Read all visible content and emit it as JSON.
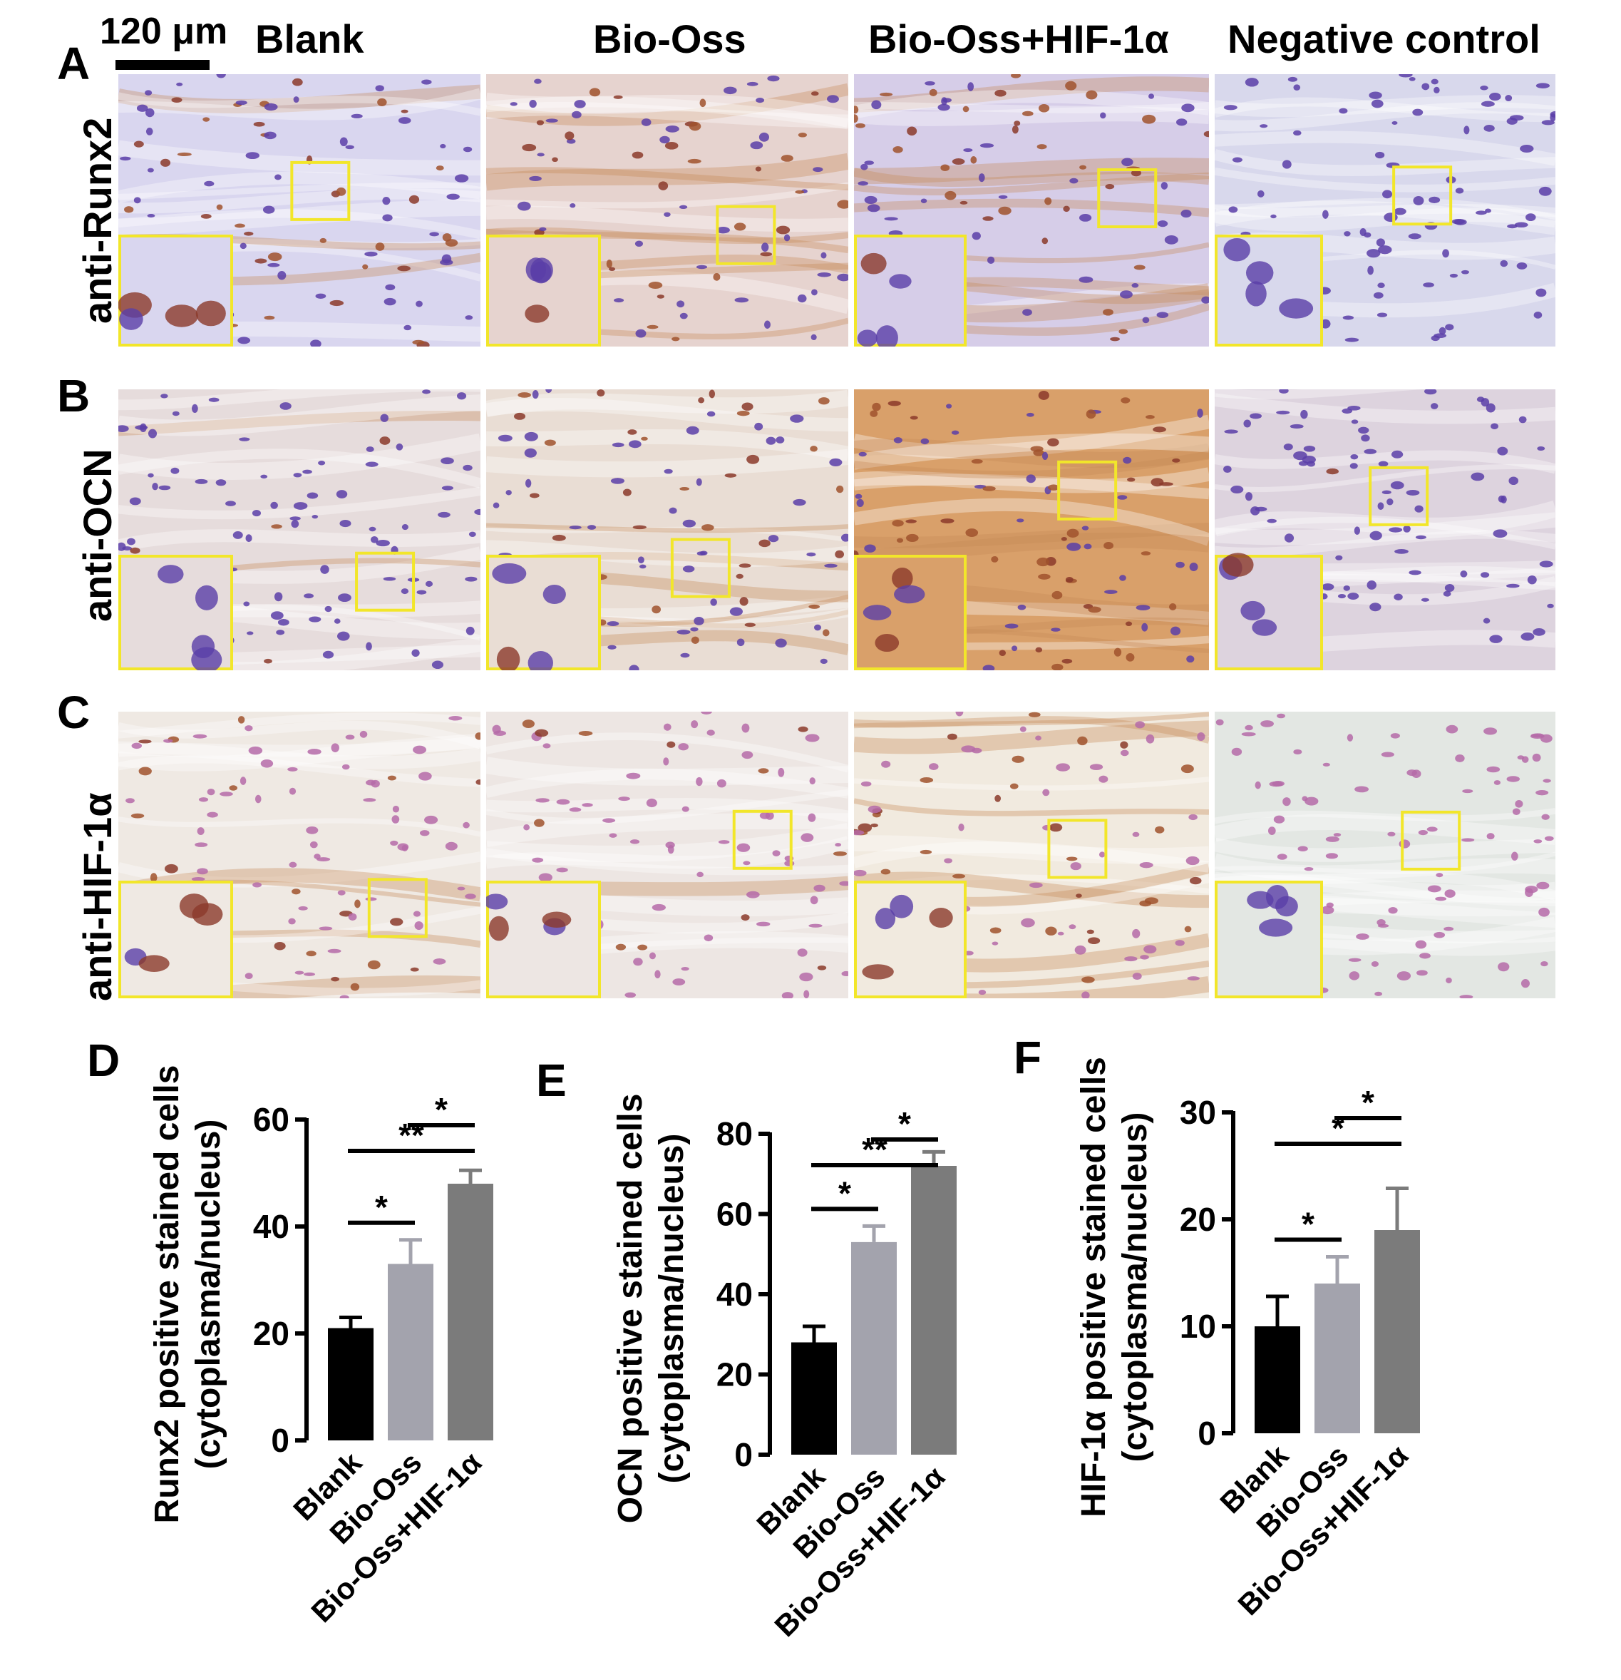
{
  "panels": {
    "A": "A",
    "B": "B",
    "C": "C",
    "D": "D",
    "E": "E",
    "F": "F"
  },
  "scale_bar": {
    "label": "120 μm"
  },
  "column_titles": [
    "Blank",
    "Bio-Oss",
    "Bio-Oss+HIF-1α",
    "Negative control"
  ],
  "row_labels": [
    "anti-Runx2",
    "anti-OCN",
    "anti-HIF-1α"
  ],
  "colors": {
    "blank_bar": "#000000",
    "biooss_bar": "#a3a3ad",
    "hif_bar": "#7b7b7b",
    "inset_border": "#f2e62a",
    "dab_brown": "#b5651d",
    "hematoxylin": "#4b2f9e"
  },
  "chart_data": [
    {
      "type": "bar",
      "panel": "D",
      "categories": [
        "Blank",
        "Bio-Oss",
        "Bio-Oss+HIF-1α"
      ],
      "values": [
        21,
        33,
        48
      ],
      "errors": [
        2,
        4.5,
        2.5
      ],
      "ylim": [
        0,
        60
      ],
      "yticks": [
        0,
        20,
        40,
        60
      ],
      "ylabel": [
        "Runx2 positive stained cells",
        "(cytoplasma/nucleus)"
      ],
      "xlabel": "",
      "title": "",
      "significance": [
        {
          "from": 1,
          "to": 2,
          "label": "*"
        },
        {
          "from": 0,
          "to": 2,
          "label": "**"
        },
        {
          "from": 0,
          "to": 1,
          "label": "*"
        }
      ]
    },
    {
      "type": "bar",
      "panel": "E",
      "categories": [
        "Blank",
        "Bio-Oss",
        "Bio-Oss+HIF-1α"
      ],
      "values": [
        28,
        53,
        72
      ],
      "errors": [
        4,
        4,
        3.5
      ],
      "ylim": [
        0,
        80
      ],
      "yticks": [
        0,
        20,
        40,
        60,
        80
      ],
      "ylabel": [
        "OCN positive stained cells",
        "(cytoplasma/nucleus)"
      ],
      "xlabel": "",
      "title": "",
      "significance": [
        {
          "from": 1,
          "to": 2,
          "label": "*"
        },
        {
          "from": 0,
          "to": 2,
          "label": "**"
        },
        {
          "from": 0,
          "to": 1,
          "label": "*"
        }
      ]
    },
    {
      "type": "bar",
      "panel": "F",
      "categories": [
        "Blank",
        "Bio-Oss",
        "Bio-Oss+HIF-1α"
      ],
      "values": [
        10,
        14,
        19
      ],
      "errors": [
        2.8,
        2.5,
        3.9
      ],
      "ylim": [
        0,
        30
      ],
      "yticks": [
        0,
        10,
        20,
        30
      ],
      "ylabel": [
        "HIF-1α positive stained cells",
        "(cytoplasma/nucleus)"
      ],
      "xlabel": "",
      "title": "",
      "significance": [
        {
          "from": 1,
          "to": 2,
          "label": "*"
        },
        {
          "from": 0,
          "to": 2,
          "label": "*"
        },
        {
          "from": 0,
          "to": 1,
          "label": "*"
        }
      ]
    }
  ]
}
